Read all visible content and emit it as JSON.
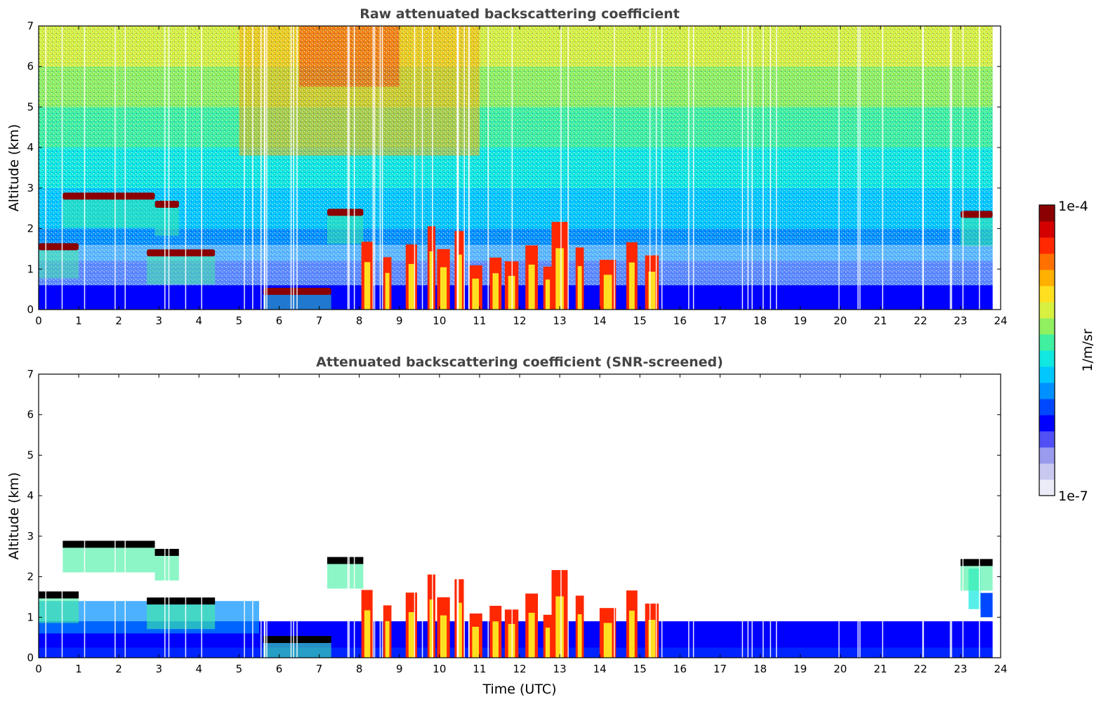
{
  "chart_data": [
    {
      "type": "heatmap",
      "title": "Raw attenuated backscattering coefficient",
      "xlabel": "",
      "ylabel": "Altitude (km)",
      "xlim": [
        0,
        24
      ],
      "ylim": [
        0,
        7
      ],
      "x_ticks": [
        "0",
        "1",
        "2",
        "3",
        "4",
        "5",
        "6",
        "7",
        "8",
        "9",
        "10",
        "11",
        "12",
        "13",
        "14",
        "15",
        "16",
        "17",
        "18",
        "19",
        "20",
        "21",
        "22",
        "23",
        "24"
      ],
      "y_ticks": [
        "0",
        "1",
        "2",
        "3",
        "4",
        "5",
        "6",
        "7"
      ],
      "data_end_hour": 23.8,
      "features": {
        "cloud_layers": [
          {
            "t_start": 0.6,
            "t_end": 2.9,
            "alt_km": 2.8
          },
          {
            "t_start": 2.9,
            "t_end": 3.5,
            "alt_km": 2.6
          },
          {
            "t_start": 0.0,
            "t_end": 1.0,
            "alt_km": 1.55
          },
          {
            "t_start": 7.2,
            "t_end": 8.1,
            "alt_km": 2.4
          },
          {
            "t_start": 23.0,
            "t_end": 23.8,
            "alt_km": 2.35
          },
          {
            "t_start": 5.6,
            "t_end": 7.3,
            "alt_km": 0.45
          },
          {
            "t_start": 2.7,
            "t_end": 4.4,
            "alt_km": 1.4
          }
        ],
        "convective_columns_hours": [
          8.2,
          8.7,
          9.3,
          9.8,
          10.1,
          10.5,
          10.9,
          11.4,
          11.8,
          12.3,
          12.7,
          13.0,
          13.5,
          14.2,
          14.8,
          15.3
        ],
        "boundary_layer_top_km": 0.6
      }
    },
    {
      "type": "heatmap",
      "title": "Attenuated backscattering coefficient (SNR-screened)",
      "xlabel": "Time (UTC)",
      "ylabel": "Altitude (km)",
      "xlim": [
        0,
        24
      ],
      "ylim": [
        0,
        7
      ],
      "x_ticks": [
        "0",
        "1",
        "2",
        "3",
        "4",
        "5",
        "6",
        "7",
        "8",
        "9",
        "10",
        "11",
        "12",
        "13",
        "14",
        "15",
        "16",
        "17",
        "18",
        "19",
        "20",
        "21",
        "22",
        "23",
        "24"
      ],
      "y_ticks": [
        "0",
        "1",
        "2",
        "3",
        "4",
        "5",
        "6",
        "7"
      ],
      "data_end_hour": 23.8
    }
  ],
  "colorbar": {
    "max_label": "1e-4",
    "min_label": "1e-7",
    "unit_label": "1/m/sr",
    "scale": "log",
    "colors": [
      "#ececf8",
      "#c8c8f0",
      "#9a9aee",
      "#5050f5",
      "#0000ff",
      "#0048ff",
      "#0090ff",
      "#00c8ff",
      "#10e8e0",
      "#40f0a0",
      "#90f060",
      "#d8f040",
      "#ffe020",
      "#ffb000",
      "#ff7000",
      "#ff2800",
      "#d40000",
      "#8b0000"
    ]
  }
}
